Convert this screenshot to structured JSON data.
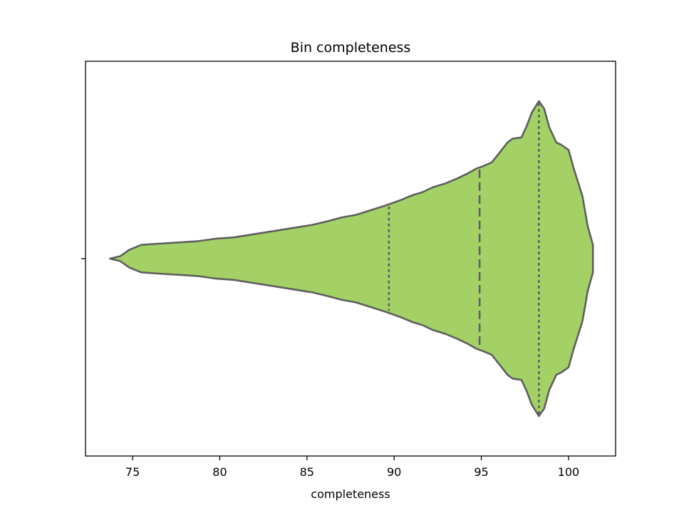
{
  "chart_data": {
    "type": "violin",
    "title": "Bin completeness",
    "xlabel": "completeness",
    "ylabel": "",
    "xlim": [
      72.3,
      102.7
    ],
    "x_ticks": [
      75,
      80,
      85,
      90,
      95,
      100
    ],
    "orientation": "horizontal",
    "grid": false,
    "colors": {
      "fill": "#a3d166",
      "stroke": "#5f5f5f",
      "axes": "#000000"
    },
    "density": {
      "x": [
        73.7,
        74.3,
        74.8,
        75.5,
        76.5,
        77.7,
        78.8,
        79.8,
        80.8,
        81.7,
        82.6,
        83.5,
        84.4,
        85.3,
        86.2,
        87.0,
        87.8,
        88.5,
        89.4,
        89.8,
        90.4,
        91.1,
        91.6,
        92.2,
        92.9,
        93.6,
        94.2,
        94.7,
        95.1,
        95.6,
        96.0,
        96.5,
        96.8,
        97.3,
        97.6,
        97.9,
        98.3,
        98.6,
        98.9,
        99.3,
        99.6,
        100.0,
        100.3,
        100.8,
        101.1,
        101.4
      ],
      "half_width": [
        0.0,
        0.02,
        0.07,
        0.11,
        0.12,
        0.13,
        0.14,
        0.16,
        0.17,
        0.19,
        0.21,
        0.23,
        0.25,
        0.27,
        0.3,
        0.33,
        0.35,
        0.38,
        0.42,
        0.44,
        0.47,
        0.51,
        0.53,
        0.57,
        0.6,
        0.64,
        0.68,
        0.72,
        0.74,
        0.77,
        0.84,
        0.93,
        0.96,
        0.97,
        1.06,
        1.17,
        1.26,
        1.2,
        1.05,
        0.93,
        0.91,
        0.87,
        0.72,
        0.5,
        0.26,
        0.11
      ]
    },
    "quartiles": {
      "q1": 89.7,
      "median": 94.9,
      "q3": 98.3
    }
  }
}
